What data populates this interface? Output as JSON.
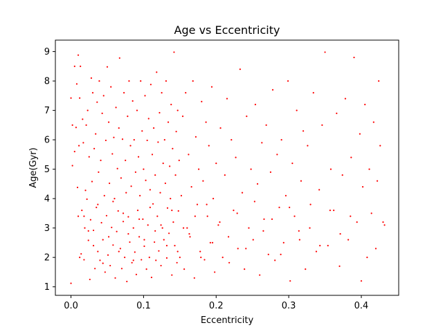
{
  "chart_data": {
    "type": "scatter",
    "title": "Age vs Eccentricity",
    "xlabel": "Eccentricity",
    "ylabel": "Age(Gyr)",
    "xlim": [
      -0.0215,
      0.4515
    ],
    "ylim": [
      0.71,
      9.39
    ],
    "xticks": [
      0.0,
      0.1,
      0.2,
      0.3,
      0.4
    ],
    "xtick_labels": [
      "0.0",
      "0.1",
      "0.2",
      "0.3",
      "0.4"
    ],
    "yticks": [
      1,
      2,
      3,
      4,
      5,
      6,
      7,
      8,
      9
    ],
    "ytick_labels": [
      "1",
      "2",
      "3",
      "4",
      "5",
      "6",
      "7",
      "8",
      "9"
    ],
    "grid": false,
    "legend": "none",
    "marker_color": "#ff0000",
    "series": [
      {
        "points": [
          [
            0.0,
            1.12
          ],
          [
            0.0,
            7.42
          ],
          [
            0.002,
            6.5
          ],
          [
            0.002,
            5.12
          ],
          [
            0.005,
            8.5
          ],
          [
            0.005,
            5.6
          ],
          [
            0.007,
            6.42
          ],
          [
            0.008,
            7.9
          ],
          [
            0.009,
            4.38
          ],
          [
            0.01,
            3.4
          ],
          [
            0.01,
            8.88
          ],
          [
            0.011,
            5.8
          ],
          [
            0.012,
            7.42
          ],
          [
            0.013,
            8.5
          ],
          [
            0.014,
            2.12
          ],
          [
            0.015,
            3.6
          ],
          [
            0.016,
            6.7
          ],
          [
            0.017,
            5.9
          ],
          [
            0.018,
            1.92
          ],
          [
            0.019,
            3.0
          ],
          [
            0.02,
            4.28
          ],
          [
            0.021,
            6.5
          ],
          [
            0.022,
            3.98
          ],
          [
            0.023,
            7.0
          ],
          [
            0.024,
            2.58
          ],
          [
            0.025,
            5.42
          ],
          [
            0.026,
            1.25
          ],
          [
            0.027,
            3.28
          ],
          [
            0.028,
            8.1
          ],
          [
            0.029,
            4.58
          ],
          [
            0.03,
            7.6
          ],
          [
            0.031,
            2.92
          ],
          [
            0.032,
            5.7
          ],
          [
            0.033,
            1.62
          ],
          [
            0.034,
            6.2
          ],
          [
            0.035,
            3.7
          ],
          [
            0.036,
            7.28
          ],
          [
            0.037,
            2.2
          ],
          [
            0.038,
            4.9
          ],
          [
            0.039,
            8.0
          ],
          [
            0.04,
            1.9
          ],
          [
            0.041,
            5.3
          ],
          [
            0.042,
            3.18
          ],
          [
            0.043,
            6.9
          ],
          [
            0.044,
            2.6
          ],
          [
            0.045,
            7.5
          ],
          [
            0.046,
            4.1
          ],
          [
            0.047,
            1.5
          ],
          [
            0.048,
            5.98
          ],
          [
            0.049,
            3.42
          ],
          [
            0.05,
            8.48
          ],
          [
            0.051,
            2.08
          ],
          [
            0.052,
            6.6
          ],
          [
            0.053,
            4.52
          ],
          [
            0.054,
            1.72
          ],
          [
            0.055,
            7.8
          ],
          [
            0.056,
            3.02
          ],
          [
            0.057,
            5.52
          ],
          [
            0.058,
            2.42
          ],
          [
            0.059,
            6.08
          ],
          [
            0.06,
            4.0
          ],
          [
            0.061,
            1.3
          ],
          [
            0.062,
            7.1
          ],
          [
            0.063,
            2.88
          ],
          [
            0.064,
            5.02
          ],
          [
            0.065,
            3.58
          ],
          [
            0.066,
            6.4
          ],
          [
            0.067,
            8.78
          ],
          [
            0.068,
            2.3
          ],
          [
            0.069,
            4.7
          ],
          [
            0.07,
            1.62
          ],
          [
            0.071,
            6.02
          ],
          [
            0.072,
            3.22
          ],
          [
            0.073,
            7.6
          ],
          [
            0.074,
            2.0
          ],
          [
            0.075,
            5.3
          ],
          [
            0.076,
            4.2
          ],
          [
            0.077,
            1.18
          ],
          [
            0.078,
            6.8
          ],
          [
            0.079,
            3.38
          ],
          [
            0.08,
            8.0
          ],
          [
            0.081,
            2.52
          ],
          [
            0.082,
            5.8
          ],
          [
            0.083,
            4.42
          ],
          [
            0.084,
            1.82
          ],
          [
            0.085,
            7.32
          ],
          [
            0.086,
            3.0
          ],
          [
            0.087,
            6.0
          ],
          [
            0.088,
            2.18
          ],
          [
            0.089,
            4.9
          ],
          [
            0.09,
            1.42
          ],
          [
            0.091,
            7.0
          ],
          [
            0.092,
            3.6
          ],
          [
            0.093,
            5.42
          ],
          [
            0.094,
            2.7
          ],
          [
            0.095,
            4.1
          ],
          [
            0.096,
            8.0
          ],
          [
            0.097,
            1.92
          ],
          [
            0.098,
            6.3
          ],
          [
            0.099,
            3.3
          ],
          [
            0.1,
            5.0
          ],
          [
            0.101,
            2.38
          ],
          [
            0.102,
            7.5
          ],
          [
            0.103,
            4.62
          ],
          [
            0.104,
            1.6
          ],
          [
            0.105,
            5.98
          ],
          [
            0.106,
            3.1
          ],
          [
            0.107,
            6.72
          ],
          [
            0.108,
            2.0
          ],
          [
            0.109,
            4.3
          ],
          [
            0.11,
            7.88
          ],
          [
            0.111,
            1.32
          ],
          [
            0.112,
            5.5
          ],
          [
            0.113,
            3.82
          ],
          [
            0.114,
            6.4
          ],
          [
            0.115,
            2.52
          ],
          [
            0.116,
            4.8
          ],
          [
            0.117,
            1.9
          ],
          [
            0.118,
            8.3
          ],
          [
            0.119,
            3.4
          ],
          [
            0.12,
            5.92
          ],
          [
            0.121,
            2.22
          ],
          [
            0.122,
            6.92
          ],
          [
            0.123,
            4.2
          ],
          [
            0.124,
            1.72
          ],
          [
            0.125,
            7.6
          ],
          [
            0.126,
            3.0
          ],
          [
            0.127,
            5.2
          ],
          [
            0.128,
            2.6
          ],
          [
            0.129,
            6.0
          ],
          [
            0.13,
            4.52
          ],
          [
            0.131,
            8.0
          ],
          [
            0.132,
            1.98
          ],
          [
            0.133,
            3.68
          ],
          [
            0.134,
            6.6
          ],
          [
            0.135,
            2.82
          ],
          [
            0.136,
            5.1
          ],
          [
            0.137,
            4.0
          ],
          [
            0.138,
            7.2
          ],
          [
            0.139,
            1.4
          ],
          [
            0.14,
            5.7
          ],
          [
            0.141,
            3.2
          ],
          [
            0.142,
            8.98
          ],
          [
            0.143,
            2.4
          ],
          [
            0.144,
            4.8
          ],
          [
            0.145,
            6.28
          ],
          [
            0.146,
            1.82
          ],
          [
            0.147,
            7.0
          ],
          [
            0.148,
            3.58
          ],
          [
            0.149,
            5.3
          ],
          [
            0.15,
            2.0
          ],
          [
            0.152,
            4.1
          ],
          [
            0.154,
            6.8
          ],
          [
            0.156,
            1.6
          ],
          [
            0.158,
            7.6
          ],
          [
            0.16,
            3.0
          ],
          [
            0.162,
            5.5
          ],
          [
            0.164,
            2.7
          ],
          [
            0.166,
            4.4
          ],
          [
            0.168,
            8.0
          ],
          [
            0.17,
            1.3
          ],
          [
            0.172,
            6.1
          ],
          [
            0.174,
            3.8
          ],
          [
            0.176,
            5.0
          ],
          [
            0.178,
            2.2
          ],
          [
            0.18,
            7.3
          ],
          [
            0.182,
            4.6
          ],
          [
            0.184,
            1.92
          ],
          [
            0.186,
            6.6
          ],
          [
            0.188,
            3.4
          ],
          [
            0.19,
            5.8
          ],
          [
            0.192,
            2.5
          ],
          [
            0.194,
            7.8
          ],
          [
            0.196,
            4.0
          ],
          [
            0.198,
            1.5
          ],
          [
            0.2,
            5.2
          ],
          [
            0.203,
            3.1
          ],
          [
            0.206,
            6.4
          ],
          [
            0.209,
            2.0
          ],
          [
            0.212,
            4.8
          ],
          [
            0.215,
            7.4
          ],
          [
            0.218,
            1.82
          ],
          [
            0.221,
            6.0
          ],
          [
            0.224,
            3.6
          ],
          [
            0.227,
            5.4
          ],
          [
            0.23,
            2.3
          ],
          [
            0.233,
            8.4
          ],
          [
            0.236,
            4.2
          ],
          [
            0.239,
            1.6
          ],
          [
            0.242,
            6.8
          ],
          [
            0.245,
            3.0
          ],
          [
            0.248,
            5.0
          ],
          [
            0.251,
            2.6
          ],
          [
            0.254,
            7.2
          ],
          [
            0.257,
            4.5
          ],
          [
            0.26,
            1.4
          ],
          [
            0.263,
            5.9
          ],
          [
            0.266,
            3.3
          ],
          [
            0.269,
            6.5
          ],
          [
            0.272,
            2.1
          ],
          [
            0.275,
            4.9
          ],
          [
            0.278,
            7.7
          ],
          [
            0.281,
            1.9
          ],
          [
            0.284,
            5.5
          ],
          [
            0.287,
            3.7
          ],
          [
            0.29,
            6.0
          ],
          [
            0.293,
            2.5
          ],
          [
            0.296,
            4.1
          ],
          [
            0.299,
            8.0
          ],
          [
            0.302,
            1.2
          ],
          [
            0.305,
            5.2
          ],
          [
            0.308,
            3.4
          ],
          [
            0.311,
            7.0
          ],
          [
            0.314,
            2.9
          ],
          [
            0.317,
            4.6
          ],
          [
            0.32,
            6.3
          ],
          [
            0.323,
            1.6
          ],
          [
            0.326,
            5.8
          ],
          [
            0.33,
            3.8
          ],
          [
            0.334,
            7.6
          ],
          [
            0.338,
            2.2
          ],
          [
            0.342,
            4.3
          ],
          [
            0.346,
            6.5
          ],
          [
            0.35,
            8.98
          ],
          [
            0.354,
            2.4
          ],
          [
            0.358,
            5.0
          ],
          [
            0.362,
            3.6
          ],
          [
            0.366,
            6.9
          ],
          [
            0.37,
            1.7
          ],
          [
            0.374,
            4.8
          ],
          [
            0.378,
            7.4
          ],
          [
            0.382,
            2.6
          ],
          [
            0.386,
            5.4
          ],
          [
            0.39,
            8.8
          ],
          [
            0.394,
            3.2
          ],
          [
            0.398,
            6.2
          ],
          [
            0.4,
            1.2
          ],
          [
            0.402,
            4.4
          ],
          [
            0.405,
            7.2
          ],
          [
            0.408,
            2.0
          ],
          [
            0.411,
            5.0
          ],
          [
            0.414,
            3.5
          ],
          [
            0.417,
            6.6
          ],
          [
            0.42,
            2.3
          ],
          [
            0.422,
            4.6
          ],
          [
            0.424,
            8.0
          ],
          [
            0.426,
            5.8
          ],
          [
            0.43,
            3.2
          ],
          [
            0.432,
            3.1
          ],
          [
            0.012,
            2.0
          ],
          [
            0.018,
            3.4
          ],
          [
            0.024,
            2.9
          ],
          [
            0.031,
            2.4
          ],
          [
            0.037,
            3.8
          ],
          [
            0.044,
            1.8
          ],
          [
            0.052,
            2.7
          ],
          [
            0.058,
            3.9
          ],
          [
            0.066,
            2.2
          ],
          [
            0.072,
            3.5
          ],
          [
            0.079,
            2.8
          ],
          [
            0.086,
            1.9
          ],
          [
            0.094,
            3.3
          ],
          [
            0.101,
            2.6
          ],
          [
            0.109,
            3.7
          ],
          [
            0.116,
            2.9
          ],
          [
            0.124,
            3.1
          ],
          [
            0.132,
            2.4
          ],
          [
            0.139,
            3.6
          ],
          [
            0.147,
            2.2
          ],
          [
            0.155,
            3.0
          ],
          [
            0.163,
            2.8
          ],
          [
            0.171,
            3.4
          ],
          [
            0.179,
            2.0
          ],
          [
            0.187,
            3.8
          ],
          [
            0.195,
            2.5
          ],
          [
            0.205,
            3.2
          ],
          [
            0.217,
            2.7
          ],
          [
            0.229,
            3.5
          ],
          [
            0.241,
            2.3
          ],
          [
            0.253,
            3.9
          ],
          [
            0.265,
            2.9
          ],
          [
            0.277,
            3.3
          ],
          [
            0.289,
            2.1
          ],
          [
            0.301,
            3.7
          ],
          [
            0.315,
            2.6
          ],
          [
            0.329,
            3.0
          ],
          [
            0.343,
            2.4
          ],
          [
            0.357,
            3.6
          ],
          [
            0.371,
            2.8
          ],
          [
            0.385,
            3.4
          ]
        ]
      }
    ]
  }
}
